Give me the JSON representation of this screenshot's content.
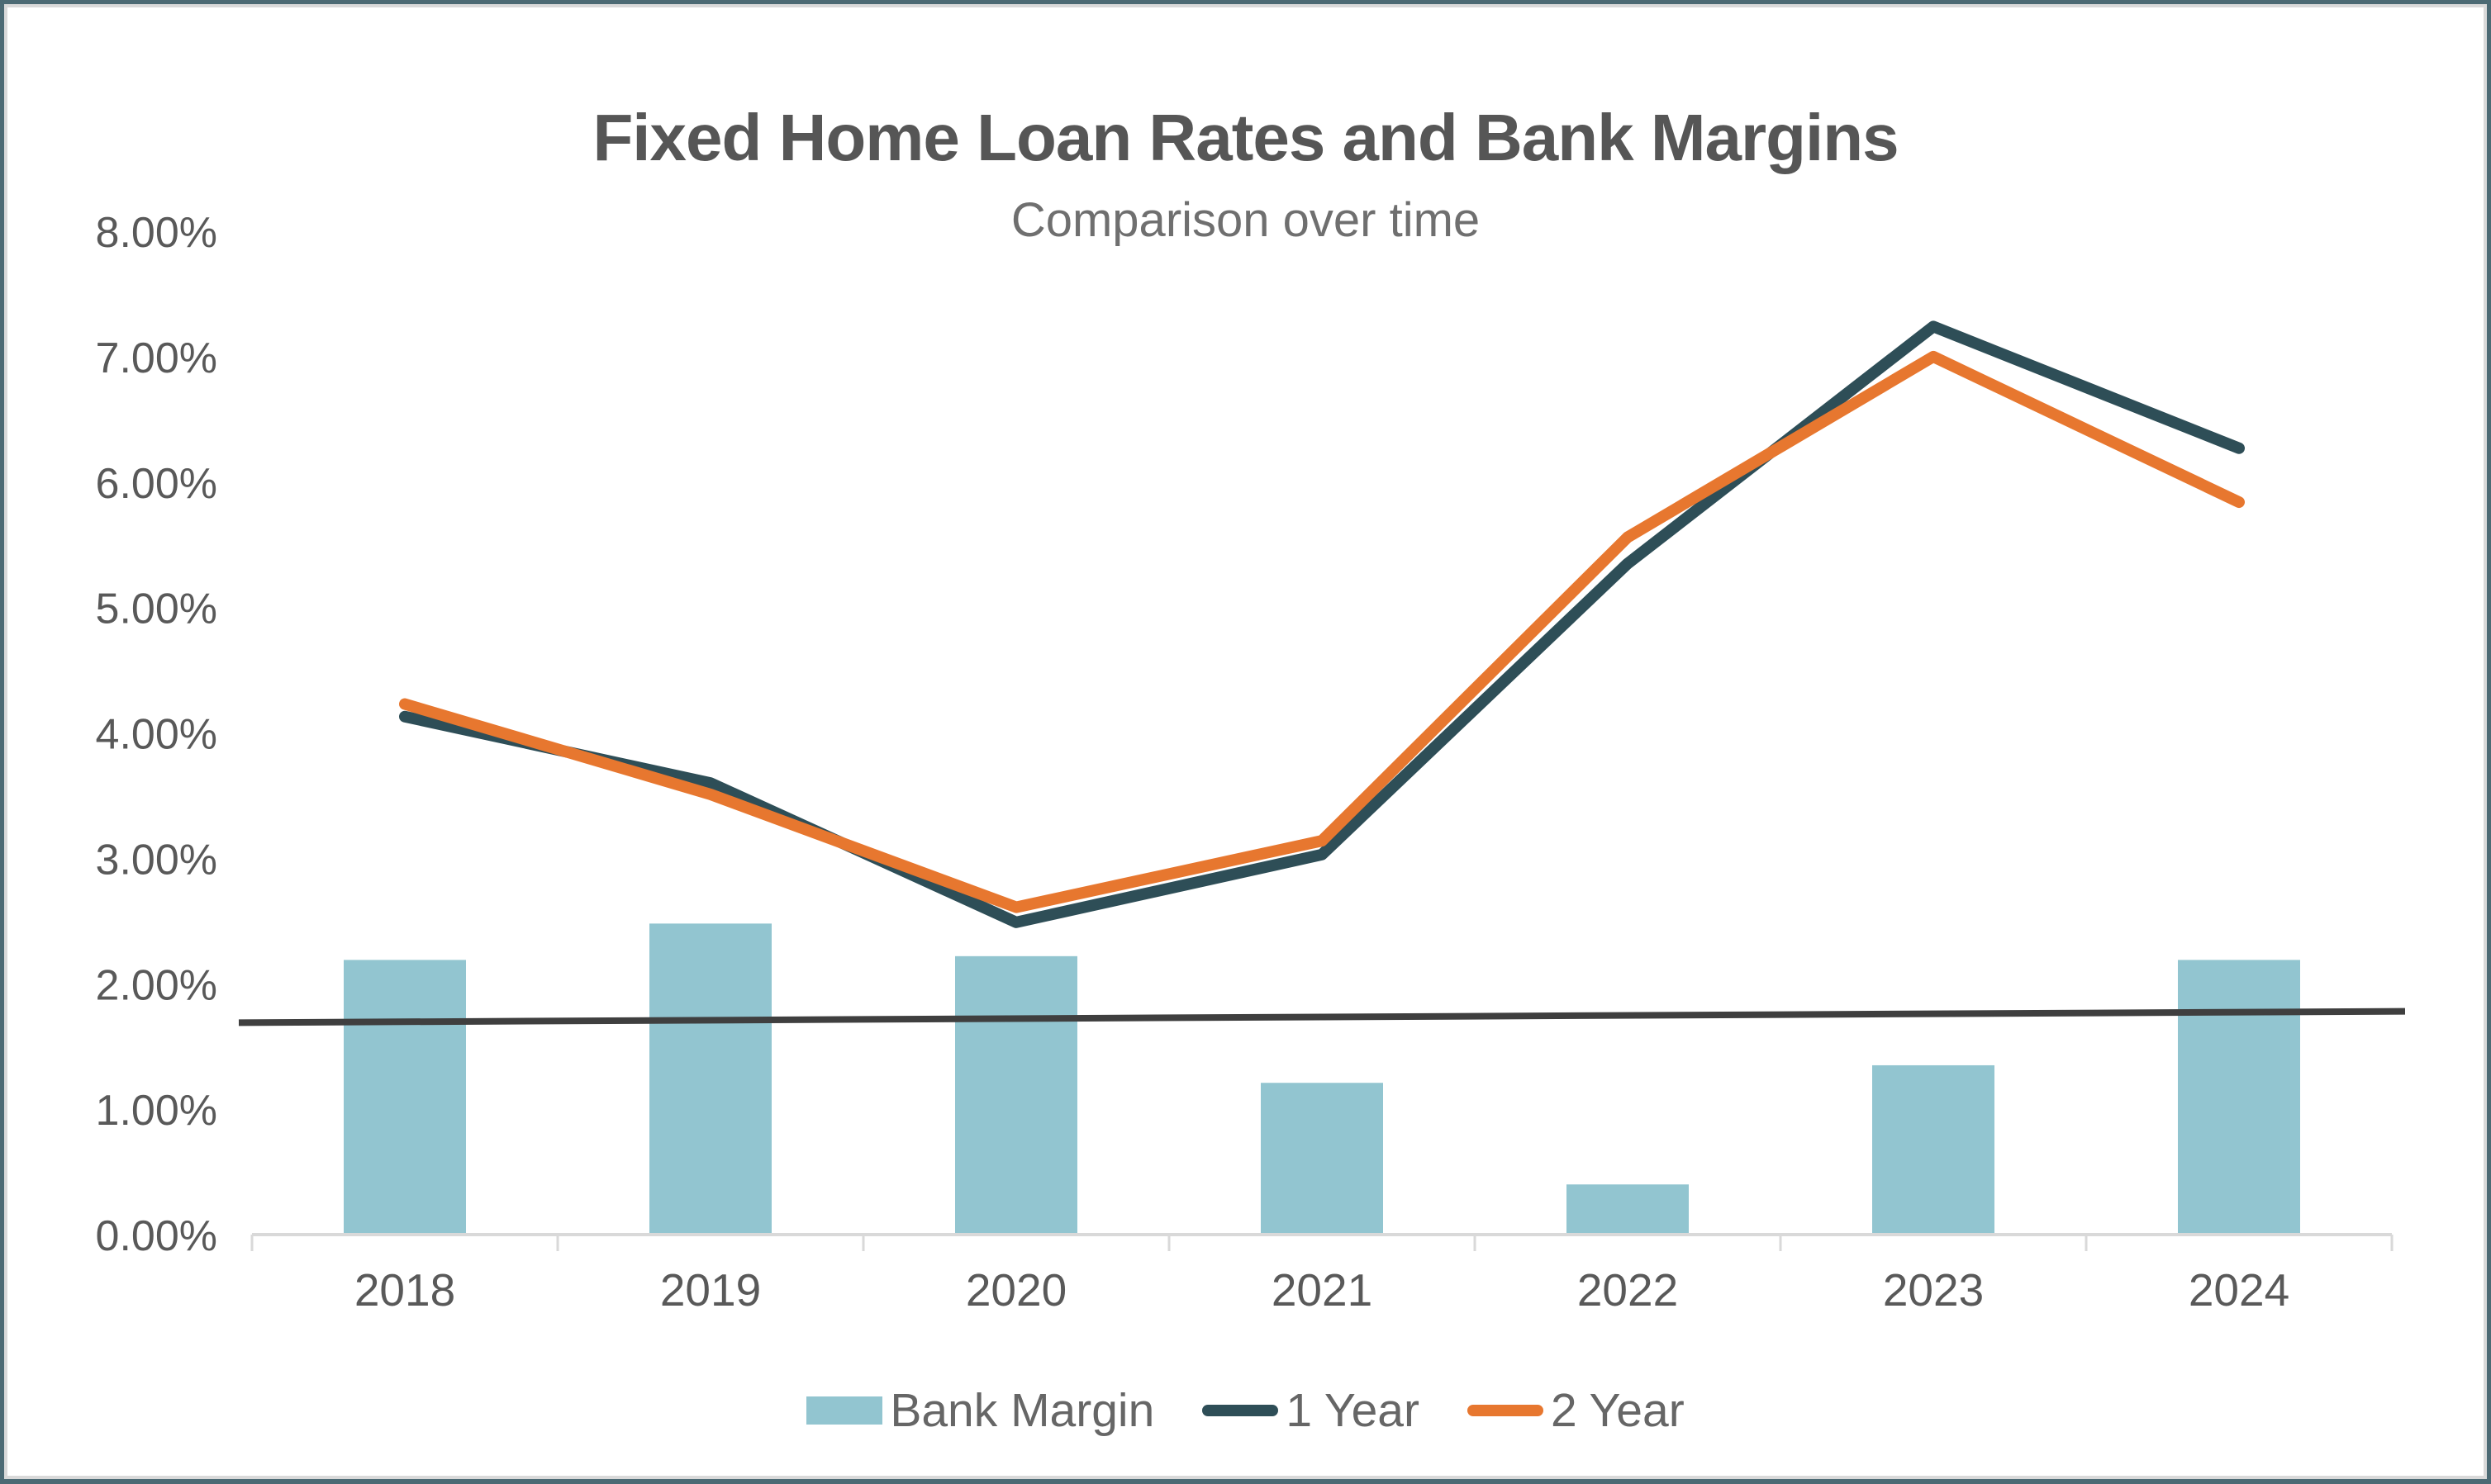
{
  "chart_data": {
    "type": "combo-bar-line",
    "title": "Fixed Home Loan Rates and Bank Margins",
    "subtitle": "Comparison over time",
    "categories": [
      "2018",
      "2019",
      "2020",
      "2021",
      "2022",
      "2023",
      "2024"
    ],
    "bar_series": {
      "name": "Bank Margin",
      "color": "#92c5d0",
      "values": [
        2.19,
        2.48,
        2.22,
        1.21,
        0.4,
        1.35,
        2.19
      ]
    },
    "line_series": [
      {
        "name": "1 Year",
        "color": "#2e4e57",
        "values": [
          4.13,
          3.6,
          2.49,
          3.03,
          5.35,
          7.24,
          6.27
        ]
      },
      {
        "name": "2 Year",
        "color": "#e7772f",
        "values": [
          4.23,
          3.51,
          2.61,
          3.14,
          5.56,
          7.0,
          5.84
        ]
      }
    ],
    "trend_line": {
      "color": "#3f3f3f",
      "start_value": 1.69,
      "end_value": 1.78
    },
    "y_axis": {
      "min": 0,
      "max": 8,
      "tick_step": 1,
      "tick_labels": [
        "0.00%",
        "1.00%",
        "2.00%",
        "3.00%",
        "4.00%",
        "5.00%",
        "6.00%",
        "7.00%",
        "8.00%"
      ]
    },
    "x_axis": {
      "tick_labels": [
        "2018",
        "2019",
        "2020",
        "2021",
        "2022",
        "2023",
        "2024"
      ]
    },
    "legend_position": "bottom",
    "gridlines": false,
    "colors": {
      "frame": "#4c6a74",
      "card_border": "#d9d9d9",
      "axis_line": "#d9d9d9",
      "axis_text": "#595959",
      "title_text": "#565656",
      "subtitle_text": "#6f6f6f",
      "legend_text": "#666666"
    }
  }
}
